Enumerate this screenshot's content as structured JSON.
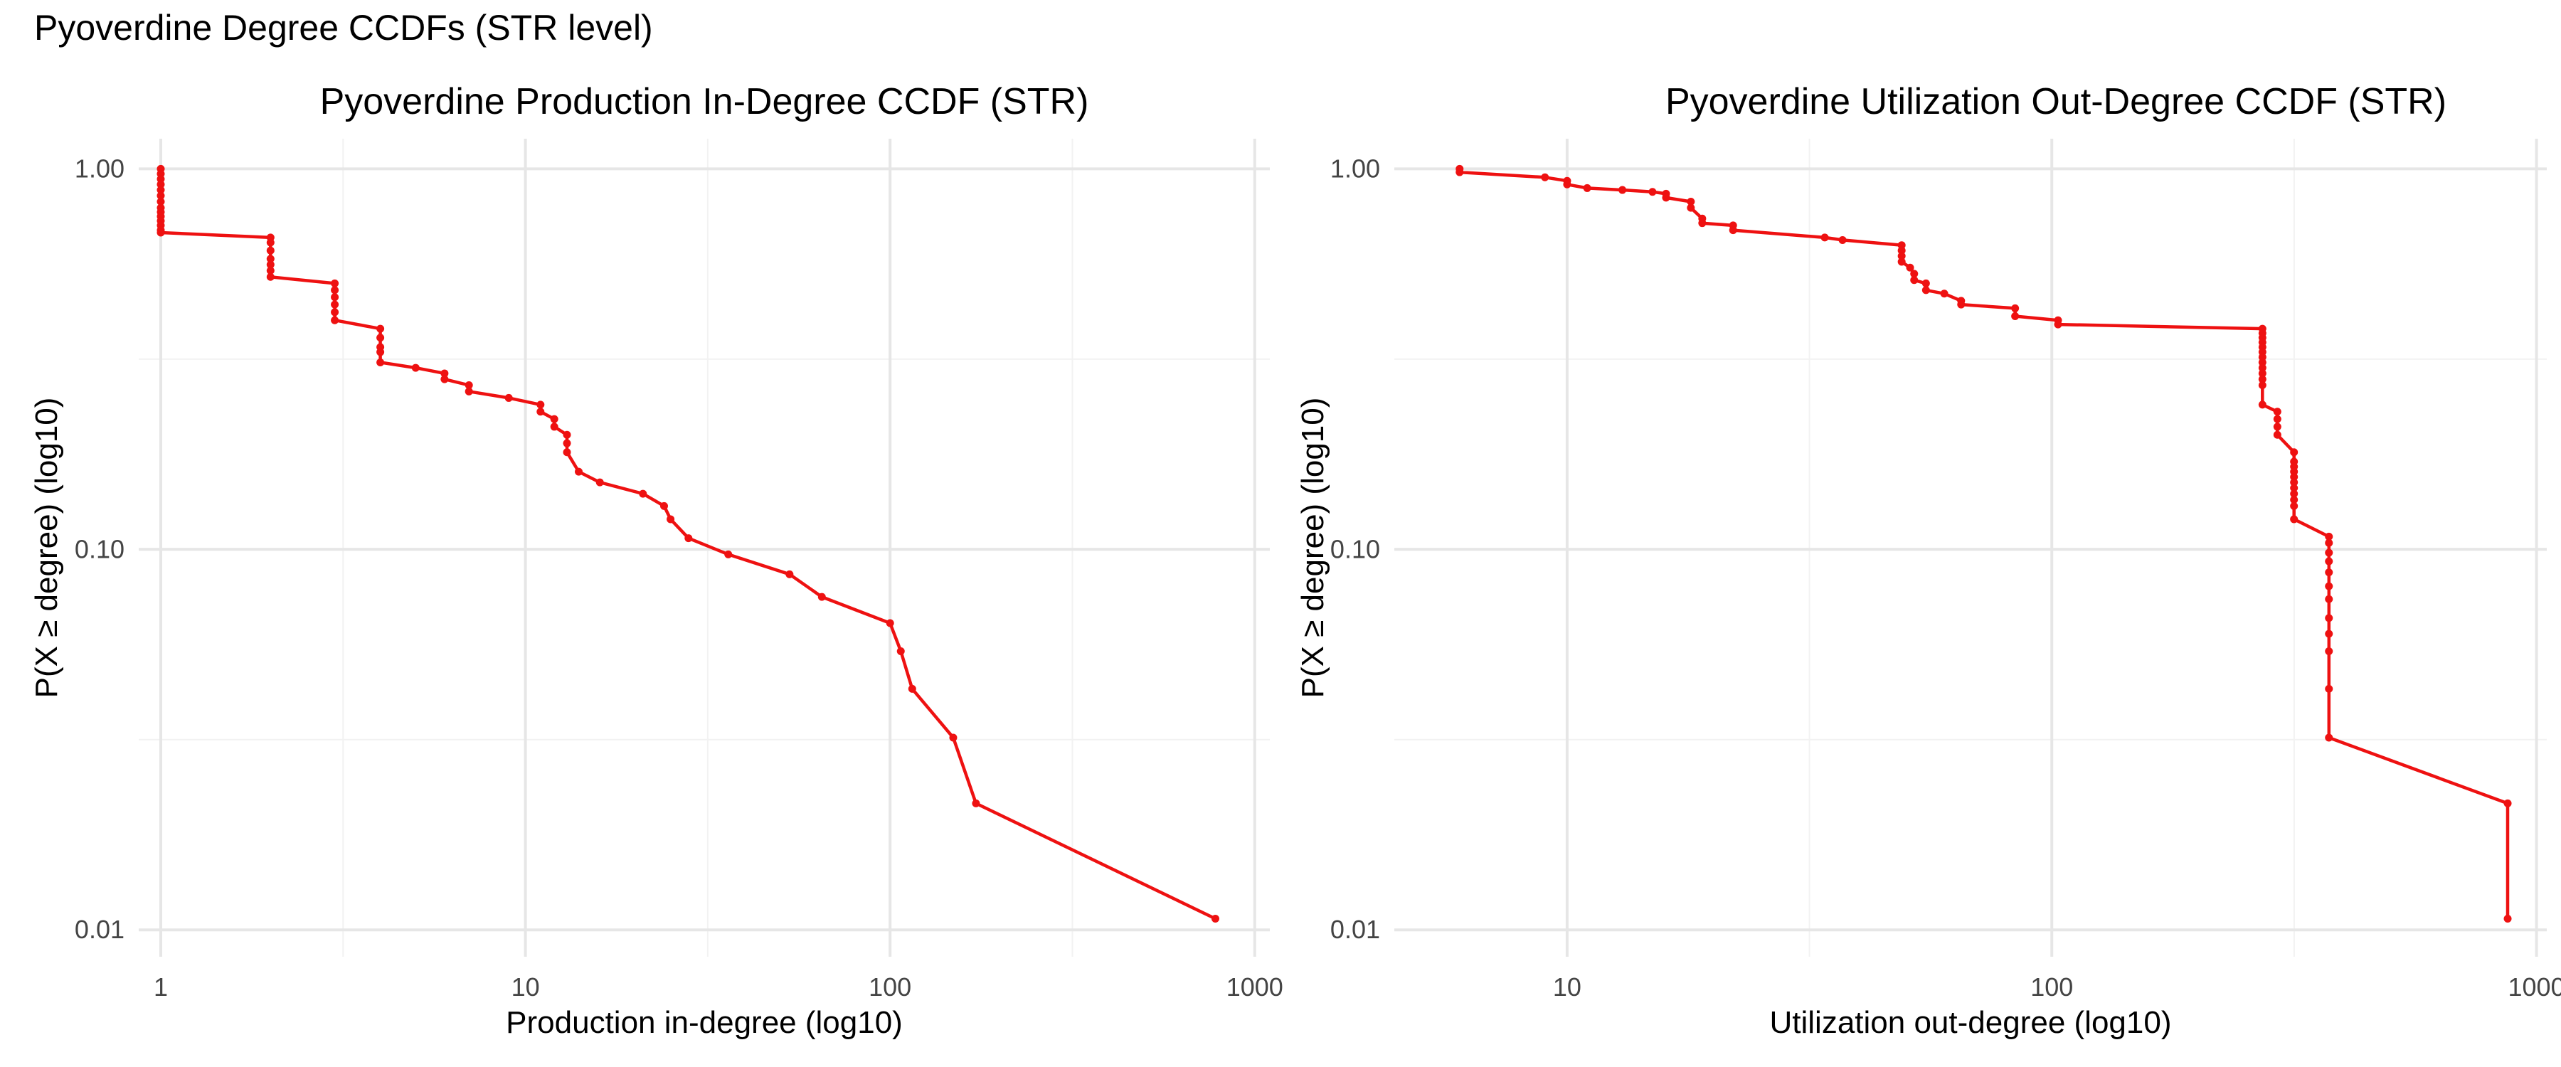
{
  "figure_title": "Pyoverdine Degree CCDFs (STR level)",
  "chart_data": [
    {
      "type": "line",
      "title": "Pyoverdine Production In-Degree CCDF (STR)",
      "xlabel": "Production in-degree (log10)",
      "ylabel": "P(X ≥ degree) (log10)",
      "xscale": "log10",
      "yscale": "log10",
      "xlim": [
        0.87,
        1100
      ],
      "ylim": [
        0.0085,
        1.2
      ],
      "xticks": [
        1,
        10,
        100,
        1000
      ],
      "xtick_labels": [
        "1",
        "10",
        "100",
        "1000"
      ],
      "yticks": [
        0.01,
        0.1,
        1
      ],
      "ytick_labels": [
        "0.01",
        "0.10",
        "1.00"
      ],
      "grid": true,
      "markers": true,
      "series": [
        {
          "color": "#ee1111",
          "x": [
            1,
            1,
            1,
            1,
            1,
            1,
            1,
            1,
            1,
            1,
            1,
            1,
            1,
            1,
            2,
            2,
            2,
            2,
            2,
            2,
            2,
            3,
            3,
            3,
            3,
            3,
            3,
            4,
            4,
            4,
            4,
            4,
            5,
            6,
            6,
            7,
            7,
            9,
            11,
            11,
            12,
            12,
            13,
            13,
            13,
            14,
            16,
            21,
            24,
            25,
            28,
            36,
            53,
            65,
            100,
            107,
            115,
            149,
            172,
            780
          ],
          "y": [
            1.0,
            0.97,
            0.94,
            0.91,
            0.88,
            0.85,
            0.82,
            0.79,
            0.77,
            0.75,
            0.73,
            0.71,
            0.69,
            0.68,
            0.66,
            0.64,
            0.61,
            0.58,
            0.56,
            0.54,
            0.52,
            0.5,
            0.48,
            0.46,
            0.44,
            0.42,
            0.4,
            0.38,
            0.36,
            0.34,
            0.33,
            0.31,
            0.3,
            0.29,
            0.28,
            0.27,
            0.26,
            0.25,
            0.24,
            0.23,
            0.22,
            0.21,
            0.2,
            0.19,
            0.18,
            0.16,
            0.15,
            0.14,
            0.13,
            0.12,
            0.107,
            0.097,
            0.086,
            0.075,
            0.064,
            0.054,
            0.043,
            0.032,
            0.0215,
            0.0107
          ]
        }
      ]
    },
    {
      "type": "line",
      "title": "Pyoverdine Utilization Out-Degree CCDF (STR)",
      "xlabel": "Utilization out-degree (log10)",
      "ylabel": "P(X ≥ degree) (log10)",
      "xscale": "log10",
      "yscale": "log10",
      "xlim": [
        4.4,
        1050
      ],
      "ylim": [
        0.0085,
        1.2
      ],
      "xticks": [
        10,
        100,
        1000
      ],
      "xtick_labels": [
        "10",
        "100",
        "1000"
      ],
      "yticks": [
        0.01,
        0.1,
        1
      ],
      "ytick_labels": [
        "0.01",
        "0.10",
        "1.00"
      ],
      "grid": true,
      "markers": true,
      "series": [
        {
          "color": "#ee1111",
          "x": [
            6,
            6,
            9,
            10,
            10,
            11,
            13,
            15,
            16,
            16,
            18,
            18,
            19,
            19,
            22,
            22,
            34,
            37,
            49,
            49,
            49,
            49,
            51,
            52,
            52,
            55,
            55,
            60,
            65,
            65,
            84,
            84,
            103,
            103,
            272,
            272,
            272,
            272,
            272,
            272,
            272,
            272,
            272,
            272,
            272,
            272,
            272,
            292,
            292,
            292,
            292,
            316,
            316,
            316,
            316,
            316,
            316,
            316,
            316,
            316,
            316,
            316,
            373,
            373,
            373,
            373,
            373,
            373,
            373,
            373,
            373,
            373,
            373,
            373,
            872,
            872
          ],
          "y": [
            1.0,
            0.98,
            0.95,
            0.93,
            0.91,
            0.89,
            0.88,
            0.87,
            0.86,
            0.84,
            0.82,
            0.79,
            0.74,
            0.72,
            0.71,
            0.69,
            0.66,
            0.65,
            0.63,
            0.61,
            0.59,
            0.57,
            0.55,
            0.53,
            0.51,
            0.5,
            0.48,
            0.47,
            0.45,
            0.44,
            0.43,
            0.41,
            0.4,
            0.39,
            0.38,
            0.37,
            0.36,
            0.35,
            0.34,
            0.33,
            0.32,
            0.31,
            0.3,
            0.29,
            0.28,
            0.27,
            0.24,
            0.23,
            0.22,
            0.21,
            0.2,
            0.18,
            0.17,
            0.165,
            0.16,
            0.155,
            0.15,
            0.145,
            0.14,
            0.135,
            0.13,
            0.12,
            0.108,
            0.104,
            0.098,
            0.093,
            0.087,
            0.08,
            0.074,
            0.066,
            0.06,
            0.054,
            0.043,
            0.032,
            0.0215,
            0.0107
          ]
        }
      ]
    }
  ]
}
